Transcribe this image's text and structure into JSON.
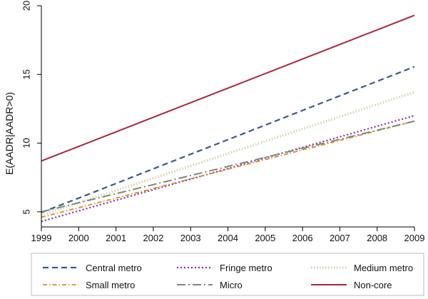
{
  "chart_data": {
    "type": "line",
    "title": "",
    "xlabel": "",
    "ylabel": "E(AADR|AADR>0)",
    "x": [
      1999,
      2000,
      2001,
      2002,
      2003,
      2004,
      2005,
      2006,
      2007,
      2008,
      2009
    ],
    "xlim": [
      1999,
      2009
    ],
    "ylim": [
      3.9,
      20
    ],
    "yticks": [
      5,
      10,
      15,
      20
    ],
    "grid": false,
    "legend_position": "bottom",
    "series": [
      {
        "name": "Central metro",
        "color": "#3d5a8a",
        "dash": "dashed",
        "values": [
          4.95,
          6.0,
          7.06,
          8.13,
          9.19,
          10.25,
          11.31,
          12.38,
          13.44,
          14.5,
          15.56
        ]
      },
      {
        "name": "Fringe metro",
        "color": "#8b2fa8",
        "dash": "dotted",
        "values": [
          4.3,
          5.07,
          5.84,
          6.61,
          7.38,
          8.15,
          8.92,
          9.69,
          10.46,
          11.23,
          12.0
        ]
      },
      {
        "name": "Medium metro",
        "color": "#d9d2b6",
        "dash": "dotted-thick",
        "values": [
          4.75,
          5.65,
          6.55,
          7.44,
          8.34,
          9.24,
          10.13,
          11.03,
          11.92,
          12.82,
          13.71
        ]
      },
      {
        "name": "Small metro",
        "color": "#e08a1e",
        "dash": "dash-dot",
        "values": [
          4.6,
          5.3,
          6.0,
          6.7,
          7.4,
          8.1,
          8.8,
          9.5,
          10.2,
          10.9,
          11.6
        ]
      },
      {
        "name": "Micro",
        "color": "#7a8a7e",
        "dash": "long-dash-dot",
        "values": [
          5.0,
          5.66,
          6.32,
          6.98,
          7.64,
          8.3,
          8.96,
          9.62,
          10.28,
          10.94,
          11.6
        ]
      },
      {
        "name": "Non-core",
        "color": "#a8283c",
        "dash": "solid",
        "values": [
          8.7,
          9.76,
          10.82,
          11.88,
          12.94,
          14.0,
          15.06,
          16.12,
          17.18,
          18.24,
          19.3
        ]
      }
    ]
  }
}
